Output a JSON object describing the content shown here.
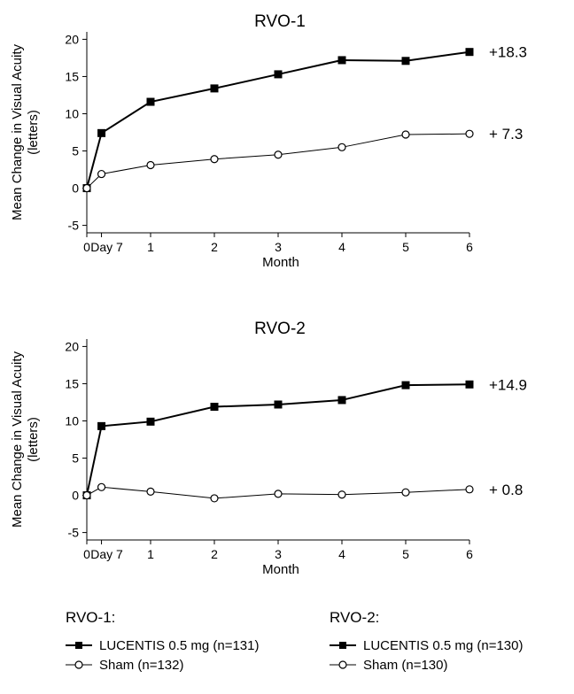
{
  "chart_data": [
    {
      "type": "line",
      "title": "RVO-1",
      "xlabel": "Month",
      "ylabel": "Mean Change in Visual Acuity",
      "ylabel_unit": "(letters)",
      "ylim": [
        -6,
        21
      ],
      "yticks": [
        -5,
        0,
        5,
        10,
        15,
        20
      ],
      "xticks": [
        {
          "value": 0,
          "label": "0"
        },
        {
          "value": 0.23,
          "label": "Day 7"
        },
        {
          "value": 1,
          "label": "1"
        },
        {
          "value": 2,
          "label": "2"
        },
        {
          "value": 3,
          "label": "3"
        },
        {
          "value": 4,
          "label": "4"
        },
        {
          "value": 5,
          "label": "5"
        },
        {
          "value": 6,
          "label": "6"
        }
      ],
      "x": [
        0,
        0.23,
        1,
        2,
        3,
        4,
        5,
        6
      ],
      "series": [
        {
          "marker": "square",
          "values": [
            0,
            7.4,
            11.6,
            13.4,
            15.3,
            17.2,
            17.1,
            18.3
          ],
          "end_label": "+18.3"
        },
        {
          "marker": "circle",
          "values": [
            0,
            1.9,
            3.1,
            3.9,
            4.5,
            5.5,
            7.2,
            7.3
          ],
          "end_label": "+ 7.3"
        }
      ]
    },
    {
      "type": "line",
      "title": "RVO-2",
      "xlabel": "Month",
      "ylabel": "Mean Change in Visual Acuity",
      "ylabel_unit": "(letters)",
      "ylim": [
        -6,
        21
      ],
      "yticks": [
        -5,
        0,
        5,
        10,
        15,
        20
      ],
      "xticks": [
        {
          "value": 0,
          "label": "0"
        },
        {
          "value": 0.23,
          "label": "Day 7"
        },
        {
          "value": 1,
          "label": "1"
        },
        {
          "value": 2,
          "label": "2"
        },
        {
          "value": 3,
          "label": "3"
        },
        {
          "value": 4,
          "label": "4"
        },
        {
          "value": 5,
          "label": "5"
        },
        {
          "value": 6,
          "label": "6"
        }
      ],
      "x": [
        0,
        0.23,
        1,
        2,
        3,
        4,
        5,
        6
      ],
      "series": [
        {
          "marker": "square",
          "values": [
            0,
            9.3,
            9.9,
            11.9,
            12.2,
            12.8,
            14.8,
            14.9
          ],
          "end_label": "+14.9"
        },
        {
          "marker": "circle",
          "values": [
            0,
            1.1,
            0.5,
            -0.4,
            0.2,
            0.1,
            0.4,
            0.8
          ],
          "end_label": "+ 0.8"
        }
      ]
    }
  ],
  "legend": {
    "rvo1": {
      "title": "RVO-1:",
      "items": [
        {
          "marker": "square",
          "label": "LUCENTIS 0.5 mg (n=131)"
        },
        {
          "marker": "circle",
          "label": "Sham (n=132)"
        }
      ]
    },
    "rvo2": {
      "title": "RVO-2:",
      "items": [
        {
          "marker": "square",
          "label": "LUCENTIS 0.5 mg (n=130)"
        },
        {
          "marker": "circle",
          "label": "Sham (n=130)"
        }
      ]
    }
  }
}
